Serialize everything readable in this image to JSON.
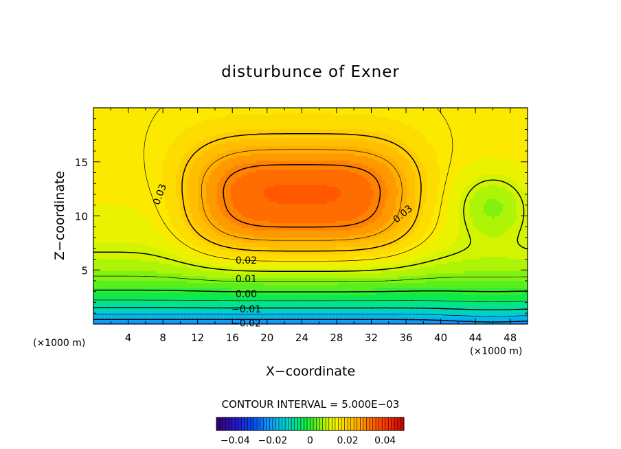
{
  "chart_data": {
    "type": "heatmap",
    "title": "disturbunce of Exner",
    "xlabel": "X−coordinate",
    "ylabel": "Z−coordinate",
    "x_unit_left": "(×1000 m)",
    "x_unit_right": "(×1000 m)",
    "xlim": [
      0,
      50
    ],
    "ylim": [
      0,
      20
    ],
    "x_ticks": [
      4,
      8,
      12,
      16,
      20,
      24,
      28,
      32,
      36,
      40,
      44,
      48
    ],
    "y_ticks": [
      5,
      10,
      15
    ],
    "contour_levels": [
      -0.02,
      -0.015,
      -0.01,
      -0.005,
      0.0,
      0.005,
      0.01,
      0.015,
      0.02,
      0.025,
      0.03
    ],
    "contour_labels": [
      {
        "text": "0.03",
        "x": 7.6,
        "y": 12.0,
        "rotate": -70
      },
      {
        "text": "0.03",
        "x": 35.6,
        "y": 10.2,
        "rotate": -40
      },
      {
        "text": "0.02",
        "x": 17.6,
        "y": 5.9,
        "rotate": 0
      },
      {
        "text": "0.01",
        "x": 17.6,
        "y": 4.2,
        "rotate": 0
      },
      {
        "text": "0.00",
        "x": 17.6,
        "y": 2.8,
        "rotate": 0
      },
      {
        "text": "−0.01",
        "x": 17.6,
        "y": 1.4,
        "rotate": 0
      },
      {
        "text": "−0.02",
        "x": 17.6,
        "y": 0.1,
        "rotate": 0
      }
    ],
    "contour_interval_text": "CONTOUR INTERVAL = 5.000E−03",
    "colorbar": {
      "range": [
        -0.05,
        0.05
      ],
      "tick_values": [
        -0.04,
        -0.02,
        0,
        0.02,
        0.04
      ],
      "tick_labels": [
        "−0.04",
        "−0.02",
        "0",
        "0.02",
        "0.04"
      ]
    },
    "field": {
      "max": 0.035,
      "max_location": {
        "x": 24,
        "z": 11.5
      },
      "min": -0.023,
      "min_location": {
        "x": 46,
        "z": 0
      }
    }
  }
}
